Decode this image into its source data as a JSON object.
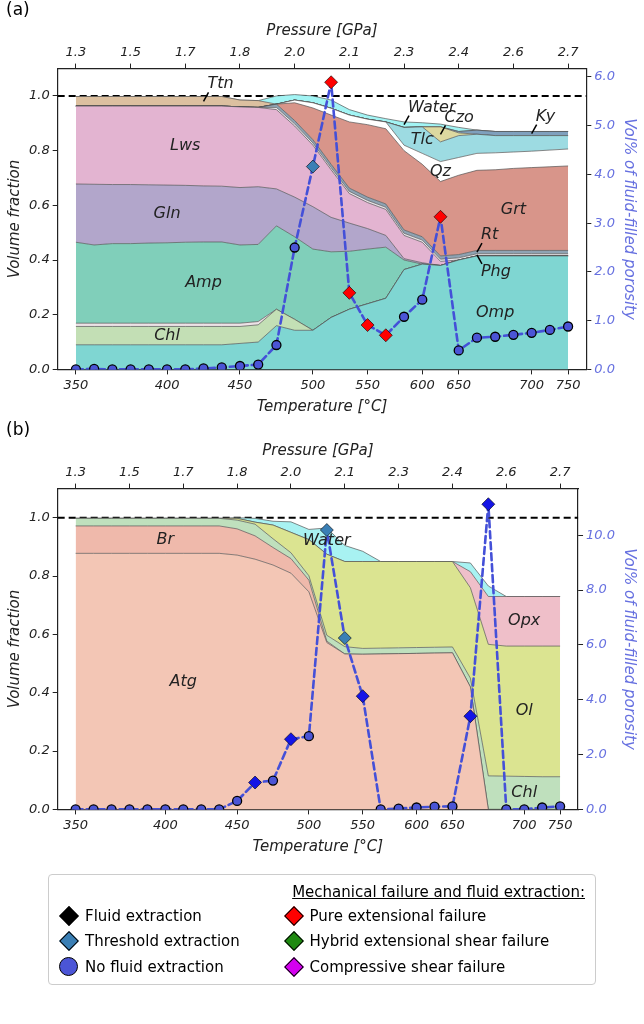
{
  "chart_data": [
    {
      "type": "area",
      "stacked": true,
      "annotations": [
        "(a)",
        "1.3",
        "1.5",
        "1.7",
        "1.8",
        "2.0",
        "2.1",
        "2.3",
        "2.4",
        "2.6",
        "2.7"
      ],
      "xlabel": "Temperature [°C]",
      "x2label": "Pressure [GPa]",
      "ylabel": "Volume fraction",
      "y2label": "Vol% of fluid-filled porosity",
      "legend": false,
      "categories": [
        "350",
        null,
        null,
        null,
        null,
        "400",
        null,
        null,
        null,
        "450",
        null,
        null,
        null,
        "500",
        null,
        null,
        "550",
        null,
        null,
        "600",
        null,
        "650",
        null,
        null,
        null,
        "700",
        null,
        "750"
      ],
      "ylim": [
        0,
        1.1
      ],
      "yticks": [
        {
          "value": 0,
          "label": "0.0"
        },
        {
          "value": 0.2,
          "label": "0.2"
        },
        {
          "value": 0.4,
          "label": "0.4"
        },
        {
          "value": 0.6,
          "label": "0.6"
        },
        {
          "value": 0.8,
          "label": "0.8"
        },
        {
          "value": 1,
          "label": "1.0"
        }
      ],
      "y2lim": [
        0,
        6.17
      ],
      "y2ticks": [
        {
          "value": 0,
          "label": "0.0"
        },
        {
          "value": 1,
          "label": "1.0"
        },
        {
          "value": 2,
          "label": "2.0"
        },
        {
          "value": 3,
          "label": "3.0"
        },
        {
          "value": 4,
          "label": "4.0"
        },
        {
          "value": 5,
          "label": "5.0"
        },
        {
          "value": 6,
          "label": "6.0"
        }
      ],
      "ref_lines": [
        {
          "axis": "y",
          "value": 1,
          "color": "#000000",
          "line_style": "dashed"
        }
      ],
      "series": [
        {
          "name": "Omp",
          "color": "#7fd6d2",
          "values": [
            0.09,
            0.09,
            0.09,
            0.09,
            0.09,
            0.09,
            0.09,
            0.09,
            0.09,
            0.095,
            0.1,
            0.16,
            0.143,
            0.143,
            0.19,
            0.22,
            0.24,
            0.26,
            0.365,
            0.385,
            0.38,
            0.4,
            0.415,
            0.415,
            0.415,
            0.415,
            0.415,
            0.415
          ]
        },
        {
          "name": "Chl",
          "color": "#c3dfb5",
          "values": [
            0.067,
            0.067,
            0.067,
            0.067,
            0.067,
            0.067,
            0.067,
            0.067,
            0.067,
            0.062,
            0.063,
            0.06,
            0.04,
            0,
            0,
            0,
            0,
            0,
            0,
            0,
            0,
            0,
            0,
            0,
            0,
            0,
            0,
            0
          ]
        },
        {
          "color": "#ece2e6",
          "values": [
            0.012,
            0.012,
            0.012,
            0.012,
            0.012,
            0.012,
            0.012,
            0.012,
            0.012,
            0.012,
            0.012,
            0,
            0,
            0,
            0,
            0,
            0,
            0,
            0,
            0,
            0,
            0,
            0,
            0,
            0,
            0,
            0,
            0
          ]
        },
        {
          "name": "Amp",
          "color": "#80cfba",
          "values": [
            0.296,
            0.286,
            0.291,
            0.291,
            0.293,
            0.294,
            0.296,
            0.297,
            0.297,
            0.286,
            0.282,
            0.305,
            0.302,
            0.297,
            0.24,
            0.212,
            0.2,
            0.187,
            0.035,
            0,
            0,
            0,
            0,
            0,
            0,
            0,
            0,
            0
          ]
        },
        {
          "name": "Gln",
          "color": "#b2a6cb",
          "values": [
            0.213,
            0.222,
            0.216,
            0.216,
            0.213,
            0.211,
            0.208,
            0.205,
            0.204,
            0.21,
            0.211,
            0.135,
            0.145,
            0.155,
            0.126,
            0.103,
            0.075,
            0.043,
            0.005,
            0.005,
            0,
            0,
            0,
            0,
            0,
            0,
            0,
            0
          ]
        },
        {
          "name": "Lws",
          "color": "#e3b4d1",
          "values": [
            0.285,
            0.286,
            0.287,
            0.287,
            0.288,
            0.289,
            0.29,
            0.292,
            0.293,
            0.295,
            0.29,
            0.29,
            0.26,
            0.225,
            0.174,
            0.108,
            0.095,
            0.095,
            0.085,
            0.075,
            0.015,
            0,
            0,
            0,
            0,
            0,
            0,
            0
          ]
        },
        {
          "name": "Phg",
          "color": "#e8e4e8",
          "values": [
            0,
            0,
            0,
            0,
            0,
            0,
            0,
            0,
            0,
            0,
            0,
            0.008,
            0.008,
            0.008,
            0.008,
            0.008,
            0.008,
            0.008,
            0.008,
            0.008,
            0.008,
            0.008,
            0.008,
            0.008,
            0.008,
            0.008,
            0.008,
            0.008
          ]
        },
        {
          "name": "Rt",
          "color": "#8fa3b3",
          "values": [
            0,
            0,
            0,
            0,
            0,
            0,
            0,
            0,
            0,
            0,
            0,
            0.012,
            0.012,
            0.012,
            0.012,
            0.012,
            0.012,
            0.012,
            0.012,
            0.012,
            0.012,
            0.012,
            0.012,
            0.012,
            0.012,
            0.012,
            0.012,
            0.012
          ]
        },
        {
          "name": "Grt",
          "color": "#d8958a",
          "values": [
            0,
            0,
            0,
            0,
            0,
            0,
            0,
            0,
            0,
            0,
            0,
            0,
            0.065,
            0.116,
            0.18,
            0.242,
            0.265,
            0.275,
            0.29,
            0.265,
            0.272,
            0.29,
            0.293,
            0.295,
            0.3,
            0.303,
            0.306,
            0.309
          ]
        },
        {
          "name": "Qz",
          "color": "#ffffff",
          "values": [
            0,
            0,
            0,
            0,
            0,
            0,
            0,
            0,
            0,
            0,
            0,
            0,
            0.01,
            0.019,
            0.025,
            0.025,
            0.02,
            0.025,
            0.02,
            0.04,
            0.073,
            0.065,
            0.062,
            0.062,
            0.06,
            0.06,
            0.061,
            0.062
          ]
        },
        {
          "name": "Tlc",
          "color": "#9ddbe2",
          "values": [
            0,
            0,
            0,
            0,
            0,
            0,
            0,
            0,
            0,
            0,
            0,
            0,
            0,
            0,
            0,
            0,
            0,
            0,
            0.065,
            0.097,
            0.072,
            0.08,
            0.07,
            0.063,
            0.06,
            0.057,
            0.053,
            0.049
          ]
        },
        {
          "name": "Czo",
          "color": "#ddd9a0",
          "values": [
            0,
            0,
            0,
            0,
            0,
            0,
            0,
            0,
            0,
            0,
            0,
            0,
            0,
            0,
            0,
            0,
            0,
            0,
            0,
            0,
            0.055,
            0.01,
            0,
            0,
            0,
            0,
            0,
            0
          ]
        },
        {
          "name": "Ky",
          "color": "#7fa0bd",
          "values": [
            0,
            0,
            0,
            0,
            0,
            0,
            0,
            0,
            0,
            0,
            0,
            0,
            0,
            0,
            0,
            0,
            0,
            0,
            0,
            0,
            0,
            0.005,
            0.015,
            0.015,
            0.015,
            0.015,
            0.015,
            0.015
          ]
        },
        {
          "name": "Ttn",
          "color": "#dcc0a0",
          "values": [
            0.035,
            0.035,
            0.035,
            0.035,
            0.035,
            0.035,
            0.035,
            0.035,
            0.035,
            0.025,
            0.025,
            0,
            0,
            0,
            0,
            0,
            0,
            0,
            0,
            0,
            0,
            0,
            0,
            0,
            0,
            0,
            0,
            0
          ]
        },
        {
          "name": "Water",
          "color": "#a2f4f4",
          "values": [
            0,
            0,
            0,
            0,
            0,
            0,
            0,
            0,
            0,
            0,
            0,
            0.03,
            0.02,
            0.025,
            0.03,
            0.02,
            0.015,
            0.012,
            0.02,
            0.015,
            0.01,
            0.015,
            0,
            0,
            0,
            0,
            0,
            0
          ]
        },
        {
          "type": "line",
          "axis": "y2",
          "color": "#4450d8",
          "line_style": "dashed",
          "marker": "none",
          "values": [
            0,
            0.01,
            0,
            0,
            0,
            0,
            0,
            0.02,
            0.04,
            0.07,
            0.1,
            0.5,
            2.5,
            4.16,
            5.89,
            1.57,
            0.91,
            0.7,
            1.08,
            1.43,
            3.13,
            0.39,
            0.65,
            0.67,
            0.71,
            0.75,
            0.81,
            0.88
          ]
        },
        {
          "type": "scatter",
          "axis": "y2",
          "color": "#4b55d6",
          "marker": "circle",
          "values": [
            0,
            0.01,
            0,
            0,
            0,
            0,
            0,
            0.02,
            0.04,
            0.07,
            0.1,
            0.5,
            2.5,
            null,
            null,
            null,
            null,
            null,
            1.08,
            1.43,
            null,
            0.39,
            0.65,
            0.67,
            0.71,
            0.75,
            0.81,
            0.88
          ]
        },
        {
          "type": "scatter",
          "axis": "y2",
          "color": "#3a7fb5",
          "marker": "diamond",
          "values": [
            null,
            null,
            null,
            null,
            null,
            null,
            null,
            null,
            null,
            null,
            null,
            null,
            null,
            4.16,
            null,
            null,
            null,
            null,
            null,
            null,
            null,
            null,
            null,
            null,
            null,
            null,
            null,
            null
          ]
        },
        {
          "type": "scatter",
          "axis": "y2",
          "color": "#ff0000",
          "marker": "diamond",
          "values": [
            null,
            null,
            null,
            null,
            null,
            null,
            null,
            null,
            null,
            null,
            null,
            null,
            null,
            null,
            5.89,
            1.57,
            0.91,
            0.7,
            null,
            null,
            3.13,
            null,
            null,
            null,
            null,
            null,
            null,
            null
          ]
        }
      ]
    },
    {
      "type": "area",
      "stacked": true,
      "annotations": [
        "(b)",
        "1.3",
        "1.5",
        "1.7",
        "1.8",
        "2.0",
        "2.1",
        "2.3",
        "2.4",
        "2.6",
        "2.7"
      ],
      "xlabel": "Temperature [°C]",
      "x2label": "Pressure [GPa]",
      "ylabel": "Volume fraction",
      "y2label": "Vol% of fluid-filled porosity",
      "legend": "bottom",
      "legend_title": "Mechanical failure and fluid extraction:",
      "categories": [
        "350",
        null,
        null,
        null,
        null,
        "400",
        null,
        null,
        null,
        "450",
        null,
        null,
        null,
        "500",
        null,
        null,
        "550",
        null,
        null,
        "600",
        null,
        "650",
        null,
        null,
        null,
        "700",
        null,
        "750"
      ],
      "ylim": [
        0,
        1.1
      ],
      "yticks": [
        {
          "value": 0,
          "label": "0.0"
        },
        {
          "value": 0.2,
          "label": "0.2"
        },
        {
          "value": 0.4,
          "label": "0.4"
        },
        {
          "value": 0.6,
          "label": "0.6"
        },
        {
          "value": 0.8,
          "label": "0.8"
        },
        {
          "value": 1,
          "label": "1.0"
        }
      ],
      "y2lim": [
        0,
        11.7
      ],
      "y2ticks": [
        {
          "value": 0,
          "label": "0.0"
        },
        {
          "value": 2,
          "label": "2.0"
        },
        {
          "value": 4,
          "label": "4.0"
        },
        {
          "value": 6,
          "label": "6.0"
        },
        {
          "value": 8,
          "label": "8.0"
        },
        {
          "value": 10,
          "label": "10.0"
        }
      ],
      "ref_lines": [
        {
          "axis": "y",
          "value": 1,
          "color": "#000000",
          "line_style": "dashed"
        }
      ],
      "series": [
        {
          "name": "Atg",
          "color": "#f3c6b5",
          "values": [
            0.878,
            0.878,
            0.878,
            0.878,
            0.878,
            0.878,
            0.878,
            0.878,
            0.878,
            0.872,
            0.858,
            0.838,
            0.81,
            0.746,
            0.572,
            0.533,
            0.532,
            0.533,
            0.534,
            0.535,
            0.536,
            0.537,
            0.42,
            0,
            0,
            0,
            0,
            0
          ]
        },
        {
          "name": "Br",
          "color": "#efb9ab",
          "values": [
            0.094,
            0.094,
            0.094,
            0.094,
            0.094,
            0.094,
            0.094,
            0.094,
            0.094,
            0.09,
            0.08,
            0.06,
            0.05,
            0.04,
            0.005,
            0,
            0,
            0,
            0,
            0,
            0,
            0,
            0,
            0,
            0,
            0,
            0,
            0
          ]
        },
        {
          "name": "Chl",
          "color": "#bfe0bd",
          "values": [
            0.026,
            0.026,
            0.026,
            0.026,
            0.026,
            0.026,
            0.026,
            0.026,
            0.026,
            0.03,
            0.04,
            0.03,
            0.02,
            0.015,
            0.02,
            0.025,
            0.02,
            0.02,
            0.02,
            0.02,
            0.02,
            0.02,
            0.03,
            0.115,
            0.114,
            0.113,
            0.112,
            0.112
          ]
        },
        {
          "name": "Ol",
          "color": "#dbe491",
          "values": [
            0,
            0,
            0,
            0,
            0,
            0,
            0,
            0,
            0,
            0.006,
            0.007,
            0.047,
            0.07,
            0.124,
            0.278,
            0.292,
            0.298,
            0.297,
            0.296,
            0.295,
            0.294,
            0.293,
            0.31,
            0.451,
            0.446,
            0.447,
            0.448,
            0.448
          ]
        },
        {
          "name": "Opx",
          "color": "#efbfc9",
          "values": [
            0,
            0,
            0,
            0,
            0,
            0,
            0,
            0,
            0,
            0,
            0,
            0,
            0,
            0,
            0,
            0,
            0,
            0,
            0,
            0,
            0,
            0,
            0.055,
            0.164,
            0.17,
            0.17,
            0.17,
            0.17
          ]
        },
        {
          "name": "Water",
          "color": "#a8f2f2",
          "values": [
            0,
            0,
            0,
            0,
            0,
            0,
            0,
            0,
            0,
            0.002,
            0.013,
            0.013,
            0.036,
            0.035,
            0.09,
            0.055,
            0.035,
            0,
            0,
            0,
            0,
            0,
            0.03,
            0.036,
            0,
            0,
            0,
            0
          ]
        },
        {
          "type": "line",
          "axis": "y2",
          "color": "#4450d8",
          "line_style": "dashed",
          "marker": "none",
          "values": [
            0,
            0,
            0,
            0,
            0,
            0,
            0,
            0,
            0,
            0.31,
            0.98,
            1.05,
            2.56,
            2.67,
            10.19,
            6.25,
            4.13,
            0,
            0.03,
            0.07,
            0.1,
            0.11,
            3.4,
            11.13,
            0,
            0,
            0.07,
            0.11
          ]
        },
        {
          "type": "scatter",
          "axis": "y2",
          "color": "#1414e6",
          "marker": "diamond",
          "values": [
            null,
            null,
            null,
            null,
            null,
            null,
            null,
            null,
            null,
            null,
            0.98,
            null,
            2.56,
            null,
            null,
            null,
            4.13,
            null,
            null,
            null,
            null,
            null,
            3.4,
            11.13,
            null,
            null,
            null,
            null
          ]
        },
        {
          "name": "Fluid extraction",
          "type": "scatter",
          "axis": "y2",
          "color": "#000000",
          "marker": "diamond",
          "values": [
            null,
            null,
            null,
            null,
            null,
            null,
            null,
            null,
            null,
            null,
            null,
            null,
            null,
            null,
            null,
            null,
            null,
            null,
            null,
            null,
            null,
            null,
            null,
            null,
            null,
            null,
            null,
            null
          ]
        },
        {
          "name": "Threshold extraction",
          "type": "scatter",
          "axis": "y2",
          "color": "#3a7fb5",
          "marker": "diamond",
          "values": [
            null,
            null,
            null,
            null,
            null,
            null,
            null,
            null,
            null,
            null,
            null,
            null,
            null,
            null,
            10.19,
            6.25,
            null,
            null,
            null,
            null,
            null,
            null,
            null,
            null,
            null,
            null,
            null,
            null
          ]
        },
        {
          "name": "No fluid extraction",
          "type": "scatter",
          "axis": "y2",
          "color": "#4b55d6",
          "marker": "circle",
          "values": [
            0,
            0,
            0,
            0,
            0,
            0,
            0,
            0,
            0,
            0.31,
            null,
            1.05,
            null,
            2.67,
            null,
            null,
            null,
            0,
            0.03,
            0.07,
            0.1,
            0.11,
            null,
            null,
            0,
            0,
            0.07,
            0.11
          ]
        },
        {
          "name": "Pure extensional failure",
          "type": "scatter",
          "axis": "y2",
          "color": "#ff0000",
          "marker": "diamond",
          "values": [
            null,
            null,
            null,
            null,
            null,
            null,
            null,
            null,
            null,
            null,
            null,
            null,
            null,
            null,
            null,
            null,
            null,
            null,
            null,
            null,
            null,
            null,
            null,
            null,
            null,
            null,
            null,
            null
          ]
        },
        {
          "name": "Hybrid extensional shear failure",
          "type": "scatter",
          "axis": "y2",
          "color": "#1e8a10",
          "marker": "diamond",
          "values": [
            null,
            null,
            null,
            null,
            null,
            null,
            null,
            null,
            null,
            null,
            null,
            null,
            null,
            null,
            null,
            null,
            null,
            null,
            null,
            null,
            null,
            null,
            null,
            null,
            null,
            null,
            null,
            null
          ]
        },
        {
          "name": "Compressive shear failure",
          "type": "scatter",
          "axis": "y2",
          "color": "#d400f0",
          "marker": "diamond",
          "values": [
            null,
            null,
            null,
            null,
            null,
            null,
            null,
            null,
            null,
            null,
            null,
            null,
            null,
            null,
            null,
            null,
            null,
            null,
            null,
            null,
            null,
            null,
            null,
            null,
            null,
            null,
            null,
            null
          ]
        }
      ]
    }
  ]
}
